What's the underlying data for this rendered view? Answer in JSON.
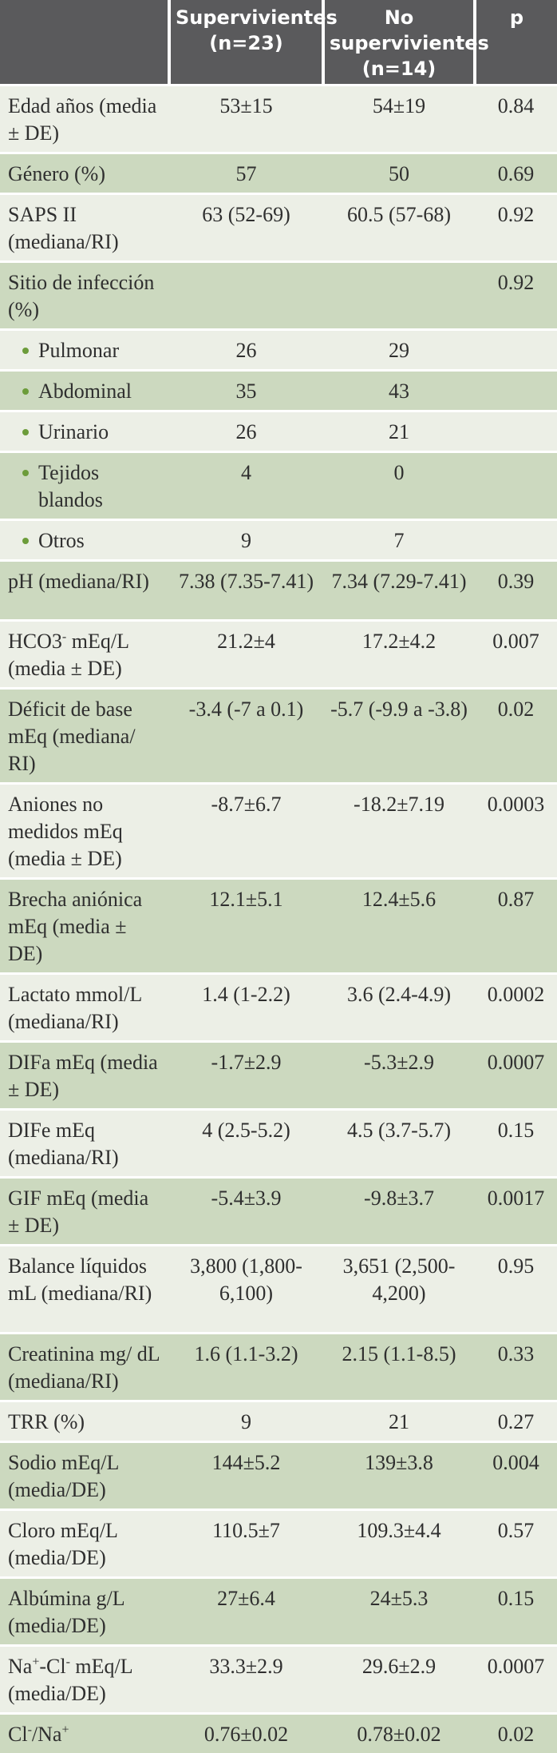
{
  "header": {
    "col1": "",
    "col2": "Supervivientes (n=23)",
    "col3": "No supervivientes (n=14)",
    "col4": "p"
  },
  "rows": [
    {
      "label": "Edad años (media ± DE)",
      "surv": "53±15",
      "nosurv": "54±19",
      "p": "0.84"
    },
    {
      "label": "Género (%)",
      "surv": "57",
      "nosurv": "50",
      "p": "0.69"
    },
    {
      "label": "SAPS II (mediana/RI)",
      "surv": "63 (52-69)",
      "nosurv": "60.5 (57-68)",
      "p": "0.92"
    },
    {
      "label": "Sitio de infección (%)",
      "surv": "",
      "nosurv": "",
      "p": "0.92"
    },
    {
      "label": "Pulmonar",
      "surv": "26",
      "nosurv": "29",
      "p": ""
    },
    {
      "label": "Abdominal",
      "surv": "35",
      "nosurv": "43",
      "p": ""
    },
    {
      "label": "Urinario",
      "surv": "26",
      "nosurv": "21",
      "p": ""
    },
    {
      "label": "Tejidos blandos",
      "surv": "4",
      "nosurv": "0",
      "p": ""
    },
    {
      "label": "Otros",
      "surv": "9",
      "nosurv": "7",
      "p": ""
    },
    {
      "label": "pH (mediana/RI)",
      "surv": "7.38 (7.35-7.41)",
      "nosurv": "7.34 (7.29-7.41)",
      "p": "0.39"
    },
    {
      "label_main": "HCO3",
      "label_sup": "-",
      "label_rest": " mEq/L (media ± DE)",
      "surv": "21.2±4",
      "nosurv": "17.2±4.2",
      "p": "0.007"
    },
    {
      "label": "Déficit de base mEq (mediana/ RI)",
      "surv": "-3.4 (-7 a 0.1)",
      "nosurv": "-5.7 (-9.9 a -3.8)",
      "p": "0.02"
    },
    {
      "label": "Aniones no medidos mEq (media ± DE)",
      "surv": "-8.7±6.7",
      "nosurv": "-18.2±7.19",
      "p": "0.0003"
    },
    {
      "label": "Brecha aniónica mEq (media ± DE)",
      "surv": "12.1±5.1",
      "nosurv": "12.4±5.6",
      "p": "0.87"
    },
    {
      "label": "Lactato mmol/L (mediana/RI)",
      "surv": "1.4 (1-2.2)",
      "nosurv": "3.6 (2.4-4.9)",
      "p": "0.0002"
    },
    {
      "label": "DIFa mEq (media ± DE)",
      "surv": "-1.7±2.9",
      "nosurv": "-5.3±2.9",
      "p": "0.0007"
    },
    {
      "label": "DIFe mEq (mediana/RI)",
      "surv": "4 (2.5-5.2)",
      "nosurv": "4.5 (3.7-5.7)",
      "p": "0.15"
    },
    {
      "label": "GIF mEq (media ± DE)",
      "surv": "-5.4±3.9",
      "nosurv": "-9.8±3.7",
      "p": "0.0017"
    },
    {
      "label": "Balance líquidos mL (mediana/RI)",
      "surv": "3,800 (1,800-6,100)",
      "nosurv": "3,651 (2,500-4,200)",
      "p": "0.95"
    },
    {
      "label": "Creatinina mg/ dL (mediana/RI)",
      "surv": "1.6 (1.1-3.2)",
      "nosurv": "2.15 (1.1-8.5)",
      "p": "0.33"
    },
    {
      "label": "TRR (%)",
      "surv": "9",
      "nosurv": "21",
      "p": "0.27"
    },
    {
      "label": "Sodio mEq/L (media/DE)",
      "surv": "144±5.2",
      "nosurv": "139±3.8",
      "p": "0.004"
    },
    {
      "label": "Cloro mEq/L (media/DE)",
      "surv": "110.5±7",
      "nosurv": "109.3±4.4",
      "p": "0.57"
    },
    {
      "label": "Albúmina g/L (media/DE)",
      "surv": "27±6.4",
      "nosurv": "24±5.3",
      "p": "0.15"
    },
    {
      "label_na": "Na",
      "label_na_sup": "+",
      "label_cl": "-Cl",
      "label_cl_sup": "-",
      "label_rest": " mEq/L (media/DE)",
      "surv": "33.3±2.9",
      "nosurv": "29.6±2.9",
      "p": "0.0007"
    },
    {
      "label_cl": "Cl",
      "label_cl_sup": "-",
      "label_slash": "/Na",
      "label_na_sup": "+",
      "surv": "0.76±0.02",
      "nosurv": "0.78±0.02",
      "p": "0.02"
    }
  ],
  "colors": {
    "header_bg": "#5a5a5c",
    "row_light": "#ecefe6",
    "row_dark": "#ccd9bf",
    "bullet": "#6c9c3a"
  }
}
